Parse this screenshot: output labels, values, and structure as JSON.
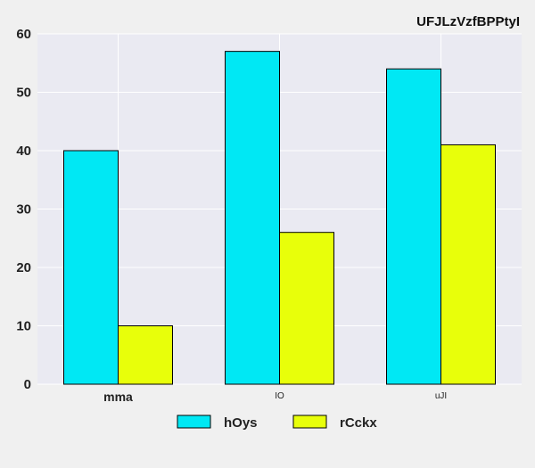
{
  "chart_data": {
    "type": "bar",
    "title": "UFJLzVzfBPPtyI",
    "xlabel": "",
    "ylabel": "",
    "categories": [
      "mma",
      "IO",
      "uJI"
    ],
    "series": [
      {
        "name": "hOys",
        "values": [
          40,
          57,
          54
        ],
        "color": "#00e8f4"
      },
      {
        "name": "rCckx",
        "values": [
          10,
          26,
          41
        ],
        "color": "#e8ff0a"
      }
    ],
    "ylim": [
      0,
      60
    ],
    "yticks": [
      0,
      10,
      20,
      30,
      40,
      50,
      60
    ],
    "grid": true,
    "legend_position": "bottom-center",
    "plot_background": "#eaeaf2",
    "grid_color": "#ffffff"
  }
}
